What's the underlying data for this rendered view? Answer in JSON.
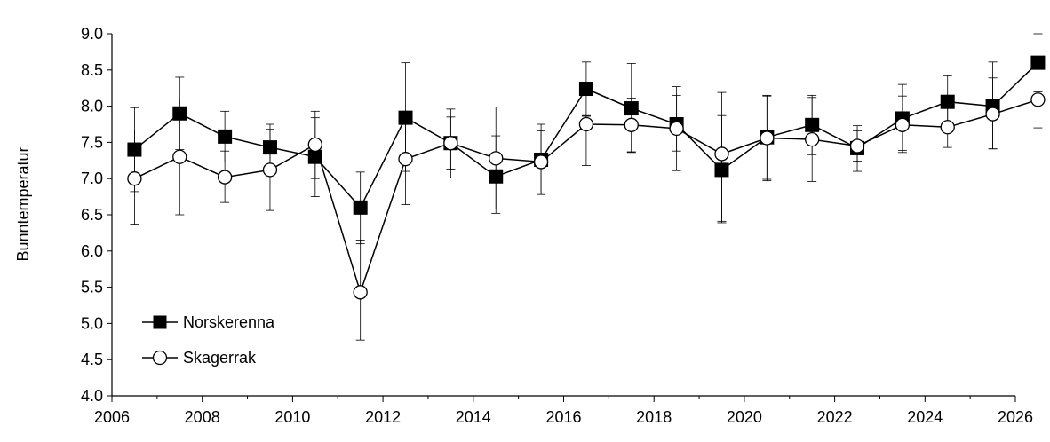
{
  "chart_data": {
    "type": "line",
    "ylabel": "Bunntemperatur",
    "xlabel": "",
    "xlim": [
      2006,
      2026
    ],
    "ylim": [
      4.0,
      9.0
    ],
    "x_ticks": [
      "2006",
      "2008",
      "2010",
      "2012",
      "2014",
      "2016",
      "2018",
      "2020",
      "2022",
      "2024",
      "2026"
    ],
    "y_ticks": [
      "4.0",
      "4.5",
      "5.0",
      "5.5",
      "6.0",
      "6.5",
      "7.0",
      "7.5",
      "8.0",
      "8.5",
      "9.0"
    ],
    "x": [
      2006.5,
      2007.5,
      2008.5,
      2009.5,
      2010.5,
      2011.5,
      2012.5,
      2013.5,
      2014.5,
      2015.5,
      2016.5,
      2017.5,
      2018.5,
      2019.5,
      2020.5,
      2021.5,
      2022.5,
      2023.5,
      2024.5,
      2025.5,
      2026.5
    ],
    "series": [
      {
        "name": "Norskerenna",
        "marker": "filled-square",
        "values": [
          7.4,
          7.9,
          7.58,
          7.43,
          7.3,
          6.6,
          7.84,
          7.49,
          7.03,
          7.26,
          8.24,
          7.97,
          7.75,
          7.12,
          7.57,
          7.74,
          7.42,
          7.83,
          8.06,
          8.0,
          8.6
        ],
        "err_low": [
          6.82,
          7.4,
          7.23,
          7.1,
          6.75,
          6.1,
          7.1,
          7.13,
          6.58,
          6.78,
          7.87,
          7.36,
          7.38,
          6.41,
          6.99,
          7.33,
          7.1,
          7.36,
          7.72,
          7.41,
          8.2
        ],
        "err_high": [
          7.98,
          8.4,
          7.93,
          7.75,
          7.84,
          7.09,
          8.6,
          7.85,
          7.99,
          7.75,
          8.61,
          8.59,
          8.15,
          8.19,
          8.15,
          8.15,
          7.73,
          8.3,
          8.42,
          8.61,
          9.0
        ]
      },
      {
        "name": "Skagerrak",
        "marker": "open-circle",
        "values": [
          7.0,
          7.3,
          7.02,
          7.12,
          7.47,
          5.43,
          7.27,
          7.49,
          7.28,
          7.23,
          7.75,
          7.74,
          7.69,
          7.34,
          7.56,
          7.54,
          7.45,
          7.74,
          7.71,
          7.89,
          8.09
        ],
        "err_low": [
          6.37,
          6.5,
          6.67,
          6.56,
          7.0,
          4.77,
          6.64,
          7.01,
          6.52,
          6.8,
          7.18,
          7.37,
          7.11,
          6.39,
          6.97,
          6.96,
          7.24,
          7.39,
          7.43,
          7.41,
          7.7
        ],
        "err_high": [
          7.67,
          8.1,
          7.38,
          7.68,
          7.93,
          6.15,
          7.9,
          7.96,
          7.59,
          7.66,
          7.86,
          8.11,
          8.27,
          7.87,
          8.14,
          8.12,
          7.66,
          8.14,
          7.99,
          8.39,
          8.2
        ]
      }
    ],
    "legend": {
      "position": "bottom-left",
      "entries": [
        "Norskerenna",
        "Skagerrak"
      ]
    },
    "grid": false,
    "colors": {
      "line": "#000000",
      "marker_fill_closed": "#000000",
      "marker_fill_open": "#ffffff"
    }
  }
}
